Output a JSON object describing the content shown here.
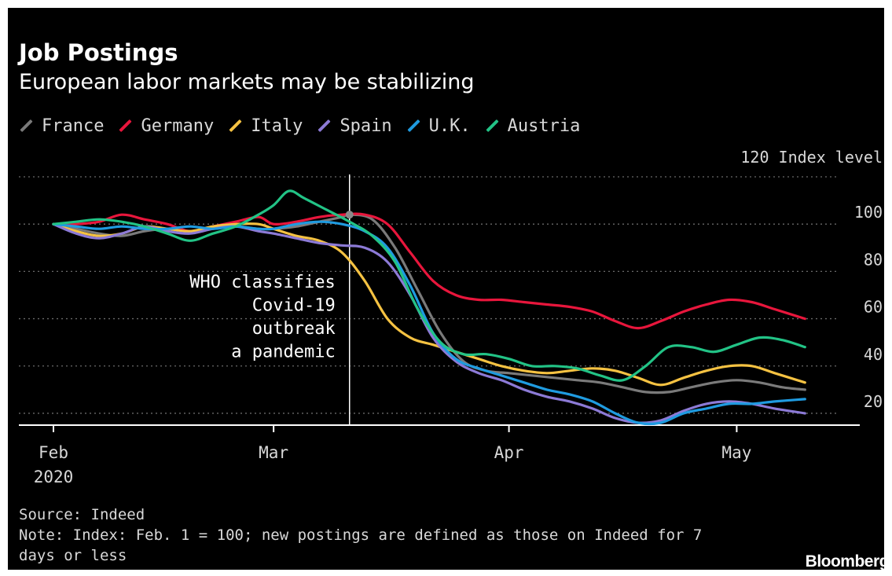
{
  "header": {
    "title": "Job Postings",
    "subtitle": "European labor markets may be stabilizing"
  },
  "legend": [
    {
      "name": "France",
      "color": "#7a7a7a"
    },
    {
      "name": "Germany",
      "color": "#e8163c"
    },
    {
      "name": "Italy",
      "color": "#f5c242"
    },
    {
      "name": "Spain",
      "color": "#8c7ad6"
    },
    {
      "name": "U.K.",
      "color": "#1f9be0"
    },
    {
      "name": "Austria",
      "color": "#22c386"
    }
  ],
  "footer": {
    "source": "Source: Indeed",
    "note_line1": "Note: Index: Feb. 1 = 100; new postings are defined as those on Indeed for 7",
    "note_line2": "days or less",
    "brand": "Bloomberg"
  },
  "chart_data": {
    "type": "line",
    "title": "Job Postings",
    "subtitle": "European labor markets may be stabilizing",
    "ylabel": "Index level",
    "ylim": [
      15,
      120
    ],
    "y_ticks": [
      {
        "value": 120,
        "label": "120 Index level"
      },
      {
        "value": 100,
        "label": "100"
      },
      {
        "value": 80,
        "label": "80"
      },
      {
        "value": 60,
        "label": "60"
      },
      {
        "value": 40,
        "label": "40"
      },
      {
        "value": 20,
        "label": "20"
      }
    ],
    "x_ticks": [
      {
        "date": "2020-02-01",
        "label": "Feb",
        "sublabel": "2020"
      },
      {
        "date": "2020-03-01",
        "label": "Mar"
      },
      {
        "date": "2020-04-01",
        "label": "Apr"
      },
      {
        "date": "2020-05-01",
        "label": "May"
      }
    ],
    "xlim": [
      "2020-02-01",
      "2020-05-11"
    ],
    "grid": "horizontal dotted",
    "legend_placement": "top-left",
    "annotation": {
      "date": "2020-03-11",
      "lines": [
        "WHO classifies",
        "Covid-19",
        "outbreak",
        "a pandemic"
      ]
    },
    "series": [
      {
        "name": "France",
        "color": "#7a7a7a",
        "points": [
          [
            "2020-02-01",
            100
          ],
          [
            "2020-02-04",
            98
          ],
          [
            "2020-02-07",
            96
          ],
          [
            "2020-02-10",
            95
          ],
          [
            "2020-02-13",
            97
          ],
          [
            "2020-02-16",
            98
          ],
          [
            "2020-02-19",
            97
          ],
          [
            "2020-02-22",
            98
          ],
          [
            "2020-02-25",
            99
          ],
          [
            "2020-02-28",
            98
          ],
          [
            "2020-03-01",
            98
          ],
          [
            "2020-03-04",
            99
          ],
          [
            "2020-03-07",
            101
          ],
          [
            "2020-03-10",
            103
          ],
          [
            "2020-03-11",
            104
          ],
          [
            "2020-03-14",
            102
          ],
          [
            "2020-03-17",
            90
          ],
          [
            "2020-03-20",
            72
          ],
          [
            "2020-03-23",
            54
          ],
          [
            "2020-03-26",
            42
          ],
          [
            "2020-03-29",
            38
          ],
          [
            "2020-04-01",
            37
          ],
          [
            "2020-04-04",
            36
          ],
          [
            "2020-04-07",
            35
          ],
          [
            "2020-04-10",
            34
          ],
          [
            "2020-04-13",
            33
          ],
          [
            "2020-04-16",
            31
          ],
          [
            "2020-04-19",
            29
          ],
          [
            "2020-04-22",
            29
          ],
          [
            "2020-04-25",
            31
          ],
          [
            "2020-04-28",
            33
          ],
          [
            "2020-05-01",
            34
          ],
          [
            "2020-05-04",
            33
          ],
          [
            "2020-05-07",
            31
          ],
          [
            "2020-05-10",
            30
          ]
        ]
      },
      {
        "name": "Germany",
        "color": "#e8163c",
        "points": [
          [
            "2020-02-01",
            100
          ],
          [
            "2020-02-04",
            100
          ],
          [
            "2020-02-07",
            101
          ],
          [
            "2020-02-10",
            104
          ],
          [
            "2020-02-13",
            102
          ],
          [
            "2020-02-16",
            100
          ],
          [
            "2020-02-19",
            97
          ],
          [
            "2020-02-22",
            99
          ],
          [
            "2020-02-25",
            101
          ],
          [
            "2020-02-28",
            103
          ],
          [
            "2020-03-01",
            100
          ],
          [
            "2020-03-04",
            101
          ],
          [
            "2020-03-07",
            103
          ],
          [
            "2020-03-10",
            104
          ],
          [
            "2020-03-13",
            104
          ],
          [
            "2020-03-16",
            100
          ],
          [
            "2020-03-19",
            88
          ],
          [
            "2020-03-22",
            76
          ],
          [
            "2020-03-25",
            70
          ],
          [
            "2020-03-28",
            68
          ],
          [
            "2020-03-31",
            68
          ],
          [
            "2020-04-03",
            67
          ],
          [
            "2020-04-06",
            66
          ],
          [
            "2020-04-09",
            65
          ],
          [
            "2020-04-12",
            63
          ],
          [
            "2020-04-15",
            59
          ],
          [
            "2020-04-18",
            56
          ],
          [
            "2020-04-21",
            59
          ],
          [
            "2020-04-24",
            63
          ],
          [
            "2020-04-27",
            66
          ],
          [
            "2020-04-30",
            68
          ],
          [
            "2020-05-03",
            67
          ],
          [
            "2020-05-06",
            64
          ],
          [
            "2020-05-10",
            60
          ]
        ]
      },
      {
        "name": "Italy",
        "color": "#f5c242",
        "points": [
          [
            "2020-02-01",
            100
          ],
          [
            "2020-02-04",
            97
          ],
          [
            "2020-02-07",
            95
          ],
          [
            "2020-02-10",
            96
          ],
          [
            "2020-02-13",
            99
          ],
          [
            "2020-02-16",
            98
          ],
          [
            "2020-02-19",
            97
          ],
          [
            "2020-02-22",
            99
          ],
          [
            "2020-02-25",
            100
          ],
          [
            "2020-02-28",
            100
          ],
          [
            "2020-03-01",
            98
          ],
          [
            "2020-03-04",
            95
          ],
          [
            "2020-03-07",
            93
          ],
          [
            "2020-03-10",
            88
          ],
          [
            "2020-03-13",
            76
          ],
          [
            "2020-03-16",
            60
          ],
          [
            "2020-03-19",
            52
          ],
          [
            "2020-03-22",
            49
          ],
          [
            "2020-03-25",
            46
          ],
          [
            "2020-03-28",
            43
          ],
          [
            "2020-03-31",
            40
          ],
          [
            "2020-04-03",
            38
          ],
          [
            "2020-04-06",
            37
          ],
          [
            "2020-04-09",
            38
          ],
          [
            "2020-04-12",
            39
          ],
          [
            "2020-04-15",
            38
          ],
          [
            "2020-04-18",
            35
          ],
          [
            "2020-04-21",
            32
          ],
          [
            "2020-04-24",
            35
          ],
          [
            "2020-04-27",
            38
          ],
          [
            "2020-04-30",
            40
          ],
          [
            "2020-05-03",
            40
          ],
          [
            "2020-05-06",
            37
          ],
          [
            "2020-05-10",
            33
          ]
        ]
      },
      {
        "name": "Spain",
        "color": "#8c7ad6",
        "points": [
          [
            "2020-02-01",
            100
          ],
          [
            "2020-02-04",
            96
          ],
          [
            "2020-02-07",
            94
          ],
          [
            "2020-02-10",
            96
          ],
          [
            "2020-02-13",
            99
          ],
          [
            "2020-02-16",
            97
          ],
          [
            "2020-02-19",
            96
          ],
          [
            "2020-02-22",
            98
          ],
          [
            "2020-02-25",
            99
          ],
          [
            "2020-02-28",
            97
          ],
          [
            "2020-03-01",
            96
          ],
          [
            "2020-03-04",
            94
          ],
          [
            "2020-03-07",
            92
          ],
          [
            "2020-03-10",
            91
          ],
          [
            "2020-03-13",
            90
          ],
          [
            "2020-03-16",
            84
          ],
          [
            "2020-03-19",
            70
          ],
          [
            "2020-03-22",
            52
          ],
          [
            "2020-03-25",
            42
          ],
          [
            "2020-03-28",
            37
          ],
          [
            "2020-03-31",
            34
          ],
          [
            "2020-04-03",
            30
          ],
          [
            "2020-04-06",
            27
          ],
          [
            "2020-04-09",
            25
          ],
          [
            "2020-04-12",
            22
          ],
          [
            "2020-04-15",
            18
          ],
          [
            "2020-04-18",
            16
          ],
          [
            "2020-04-21",
            17
          ],
          [
            "2020-04-24",
            21
          ],
          [
            "2020-04-27",
            24
          ],
          [
            "2020-04-30",
            25
          ],
          [
            "2020-05-03",
            24
          ],
          [
            "2020-05-06",
            22
          ],
          [
            "2020-05-10",
            20
          ]
        ]
      },
      {
        "name": "U.K.",
        "color": "#1f9be0",
        "points": [
          [
            "2020-02-01",
            100
          ],
          [
            "2020-02-04",
            99
          ],
          [
            "2020-02-07",
            98
          ],
          [
            "2020-02-10",
            99
          ],
          [
            "2020-02-13",
            98
          ],
          [
            "2020-02-16",
            98
          ],
          [
            "2020-02-19",
            99
          ],
          [
            "2020-02-22",
            98
          ],
          [
            "2020-02-25",
            99
          ],
          [
            "2020-02-28",
            98
          ],
          [
            "2020-03-01",
            98
          ],
          [
            "2020-03-04",
            100
          ],
          [
            "2020-03-07",
            101
          ],
          [
            "2020-03-10",
            100
          ],
          [
            "2020-03-13",
            97
          ],
          [
            "2020-03-16",
            90
          ],
          [
            "2020-03-19",
            74
          ],
          [
            "2020-03-22",
            54
          ],
          [
            "2020-03-25",
            43
          ],
          [
            "2020-03-28",
            39
          ],
          [
            "2020-03-31",
            36
          ],
          [
            "2020-04-03",
            33
          ],
          [
            "2020-04-06",
            30
          ],
          [
            "2020-04-09",
            28
          ],
          [
            "2020-04-12",
            25
          ],
          [
            "2020-04-15",
            20
          ],
          [
            "2020-04-18",
            16
          ],
          [
            "2020-04-21",
            16
          ],
          [
            "2020-04-24",
            20
          ],
          [
            "2020-04-27",
            22
          ],
          [
            "2020-04-30",
            24
          ],
          [
            "2020-05-03",
            24
          ],
          [
            "2020-05-06",
            25
          ],
          [
            "2020-05-10",
            26
          ]
        ]
      },
      {
        "name": "Austria",
        "color": "#22c386",
        "points": [
          [
            "2020-02-01",
            100
          ],
          [
            "2020-02-04",
            101
          ],
          [
            "2020-02-07",
            102
          ],
          [
            "2020-02-10",
            101
          ],
          [
            "2020-02-13",
            99
          ],
          [
            "2020-02-16",
            96
          ],
          [
            "2020-02-19",
            93
          ],
          [
            "2020-02-22",
            96
          ],
          [
            "2020-02-25",
            99
          ],
          [
            "2020-02-28",
            104
          ],
          [
            "2020-03-01",
            108
          ],
          [
            "2020-03-03",
            114
          ],
          [
            "2020-03-05",
            111
          ],
          [
            "2020-03-08",
            106
          ],
          [
            "2020-03-11",
            101
          ],
          [
            "2020-03-14",
            95
          ],
          [
            "2020-03-17",
            84
          ],
          [
            "2020-03-20",
            64
          ],
          [
            "2020-03-23",
            50
          ],
          [
            "2020-03-26",
            45
          ],
          [
            "2020-03-29",
            45
          ],
          [
            "2020-04-01",
            43
          ],
          [
            "2020-04-04",
            40
          ],
          [
            "2020-04-07",
            40
          ],
          [
            "2020-04-10",
            39
          ],
          [
            "2020-04-13",
            36
          ],
          [
            "2020-04-16",
            34
          ],
          [
            "2020-04-19",
            40
          ],
          [
            "2020-04-22",
            48
          ],
          [
            "2020-04-25",
            48
          ],
          [
            "2020-04-28",
            46
          ],
          [
            "2020-05-01",
            49
          ],
          [
            "2020-05-04",
            52
          ],
          [
            "2020-05-07",
            51
          ],
          [
            "2020-05-10",
            48
          ]
        ]
      }
    ]
  }
}
